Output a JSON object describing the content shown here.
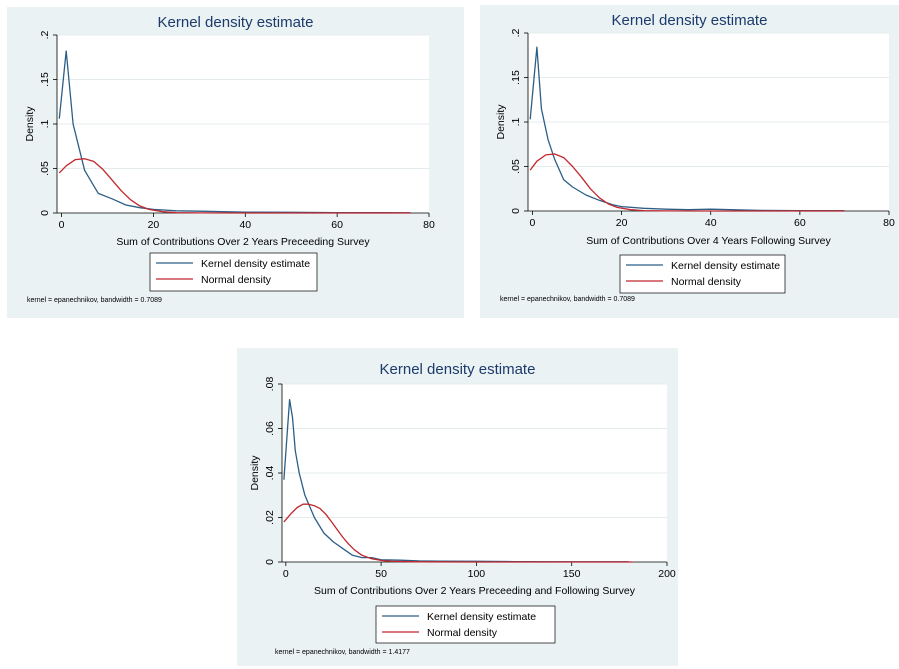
{
  "colors": {
    "panel_bg": "#eaf2f3",
    "plot_bg": "#ffffff",
    "title": "#1c3a6b",
    "kernel_line": "#2c5f86",
    "normal_line": "#c1272d",
    "grid": "#e4ecee"
  },
  "chart_data": [
    {
      "type": "line",
      "title": "Kernel density estimate",
      "xlabel": "Sum of Contributions Over 2 Years Preceeding Survey",
      "ylabel": "Density",
      "xlim": [
        -1,
        80
      ],
      "ylim": [
        0,
        0.2
      ],
      "xticks": [
        0,
        20,
        40,
        60,
        80
      ],
      "yticks": [
        0,
        0.05,
        0.1,
        0.15,
        0.2
      ],
      "ytick_labels": [
        "0",
        ".05",
        ".1",
        ".15",
        ".2"
      ],
      "grid": true,
      "legend_position": "bottom",
      "note": "kernel = epanechnikov, bandwidth = 0.7089",
      "series": [
        {
          "name": "Kernel density estimate",
          "color": "#2c5f86",
          "x": [
            -0.5,
            1,
            2.5,
            5,
            8,
            11,
            14,
            17,
            20,
            25,
            30,
            35,
            40,
            50,
            60,
            70,
            76
          ],
          "y": [
            0.106,
            0.182,
            0.1,
            0.048,
            0.022,
            0.016,
            0.009,
            0.006,
            0.004,
            0.0025,
            0.002,
            0.0015,
            0.001,
            0.0008,
            0.0005,
            0.0003,
            0.0002
          ]
        },
        {
          "name": "Normal density",
          "color": "#c1272d",
          "x": [
            -0.5,
            1,
            3,
            5,
            7,
            9,
            11,
            13,
            15,
            17,
            19,
            22,
            25,
            30,
            40,
            60,
            76
          ],
          "y": [
            0.045,
            0.053,
            0.06,
            0.061,
            0.058,
            0.049,
            0.037,
            0.025,
            0.015,
            0.008,
            0.004,
            0.0015,
            0.0005,
            0.0001,
            0,
            0,
            0
          ]
        }
      ]
    },
    {
      "type": "line",
      "title": "Kernel density estimate",
      "xlabel": "Sum of Contributions Over 4 Years Following Survey",
      "ylabel": "Density",
      "xlim": [
        -1,
        80
      ],
      "ylim": [
        0,
        0.2
      ],
      "xticks": [
        0,
        20,
        40,
        60,
        80
      ],
      "yticks": [
        0,
        0.05,
        0.1,
        0.15,
        0.2
      ],
      "ytick_labels": [
        "0",
        ".05",
        ".1",
        ".15",
        ".2"
      ],
      "grid": true,
      "legend_position": "bottom",
      "note": "kernel = epanechnikov, bandwidth = 0.7089",
      "series": [
        {
          "name": "Kernel density estimate",
          "color": "#2c5f86",
          "x": [
            -0.5,
            1,
            2,
            3.5,
            5,
            7,
            9,
            12,
            15,
            18,
            20,
            25,
            30,
            35,
            40,
            50,
            60,
            70
          ],
          "y": [
            0.103,
            0.184,
            0.115,
            0.08,
            0.058,
            0.035,
            0.027,
            0.018,
            0.012,
            0.007,
            0.005,
            0.003,
            0.002,
            0.0015,
            0.002,
            0.0008,
            0.0005,
            0.0003
          ]
        },
        {
          "name": "Normal density",
          "color": "#c1272d",
          "x": [
            -0.5,
            1,
            3,
            5,
            7,
            9,
            11,
            13,
            15,
            17,
            19,
            22,
            25,
            30,
            40,
            60,
            70
          ],
          "y": [
            0.046,
            0.056,
            0.063,
            0.064,
            0.06,
            0.05,
            0.038,
            0.025,
            0.015,
            0.008,
            0.004,
            0.0015,
            0.0005,
            0.0001,
            0,
            0,
            0
          ]
        }
      ]
    },
    {
      "type": "line",
      "title": "Kernel density estimate",
      "xlabel": "Sum of Contributions Over 2 Years Preceeding and Following Survey",
      "ylabel": "Density",
      "xlim": [
        -2,
        200
      ],
      "ylim": [
        0,
        0.08
      ],
      "xticks": [
        0,
        50,
        100,
        150,
        200
      ],
      "yticks": [
        0,
        0.02,
        0.04,
        0.06,
        0.08
      ],
      "ytick_labels": [
        "0",
        ".02",
        ".04",
        ".06",
        ".08"
      ],
      "grid": true,
      "legend_position": "bottom",
      "note": "kernel = epanechnikov, bandwidth = 1.4177",
      "series": [
        {
          "name": "Kernel density estimate",
          "color": "#2c5f86",
          "x": [
            -1,
            2,
            3.5,
            5,
            7,
            10,
            15,
            20,
            25,
            30,
            35,
            40,
            45,
            50,
            60,
            70,
            80,
            100,
            120,
            150,
            180
          ],
          "y": [
            0.037,
            0.073,
            0.065,
            0.05,
            0.04,
            0.03,
            0.02,
            0.013,
            0.009,
            0.006,
            0.003,
            0.002,
            0.002,
            0.001,
            0.0008,
            0.0005,
            0.0004,
            0.0003,
            0.0002,
            0.0001,
            0.0001
          ]
        },
        {
          "name": "Normal density",
          "color": "#c1272d",
          "x": [
            -1,
            3,
            6,
            9,
            12,
            15,
            18,
            21,
            24,
            27,
            30,
            33,
            36,
            40,
            45,
            50,
            55,
            70,
            100,
            182
          ],
          "y": [
            0.018,
            0.022,
            0.0245,
            0.026,
            0.026,
            0.0253,
            0.024,
            0.0215,
            0.018,
            0.0145,
            0.011,
            0.008,
            0.0055,
            0.003,
            0.0015,
            0.0007,
            0.0003,
            0.0001,
            0,
            0
          ]
        }
      ]
    }
  ]
}
